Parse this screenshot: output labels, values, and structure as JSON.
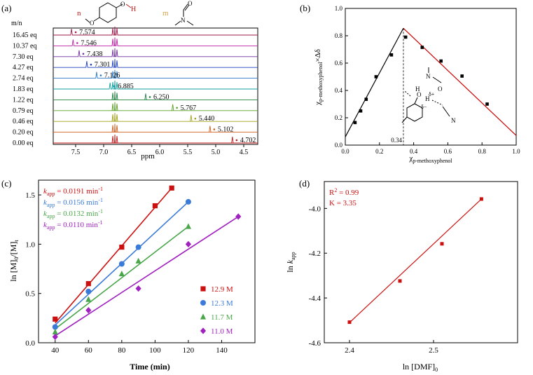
{
  "chart_data": [
    {
      "id": "a",
      "type": "line",
      "panel_label": "(a)",
      "title": "",
      "xlabel": "ppm",
      "ylabel": "",
      "series_header": "m/n",
      "molecule_labels": {
        "n": "n",
        "m": "m",
        "h": "H"
      },
      "xlim": [
        7.9,
        4.25
      ],
      "xticks": [
        "7.5",
        "7.0",
        "6.5",
        "6.0",
        "5.5",
        "5.0",
        "4.5"
      ],
      "xtick_values": [
        7.5,
        7.0,
        6.5,
        6.0,
        5.5,
        5.0,
        4.5
      ],
      "series": [
        {
          "name": "16.45 eq",
          "peak": 7.574,
          "peak_label": "7.574",
          "color": "#a01848"
        },
        {
          "name": "10.37 eq",
          "peak": 7.546,
          "peak_label": "7.546",
          "color": "#c020a8"
        },
        {
          "name": "7.30 eq",
          "peak": 7.438,
          "peak_label": "7.438",
          "color": "#7030a0"
        },
        {
          "name": "4.27 eq",
          "peak": 7.301,
          "peak_label": "7.301",
          "color": "#2040c0"
        },
        {
          "name": "2.74 eq",
          "peak": 7.126,
          "peak_label": "7.126",
          "color": "#2a78c8"
        },
        {
          "name": "1.83 eq",
          "peak": 6.885,
          "peak_label": "6.885",
          "color": "#10a0a0"
        },
        {
          "name": "1.22 eq",
          "peak": 6.25,
          "peak_label": "6.250",
          "color": "#208040"
        },
        {
          "name": "0.79 eq",
          "peak": 5.767,
          "peak_label": "5.767",
          "color": "#5aa028"
        },
        {
          "name": "0.46 eq",
          "peak": 5.44,
          "peak_label": "5.440",
          "color": "#a0a018"
        },
        {
          "name": "0.20 eq",
          "peak": 5.102,
          "peak_label": "5.102",
          "color": "#d06020"
        },
        {
          "name": "0.00 eq",
          "peak": 4.702,
          "peak_label": "4.702",
          "color": "#c01818"
        }
      ]
    },
    {
      "id": "b",
      "type": "scatter",
      "panel_label": "(b)",
      "xlabel": "χp-methoxyphenol",
      "xlabel_parts": {
        "main": "χ",
        "sub": "p-methoxyphenol"
      },
      "ylabel_parts": {
        "main": "χ",
        "sub": "p-methoxyphenol",
        "tail": "×Δδ"
      },
      "xlim": [
        0,
        1.0
      ],
      "ylim": [
        0,
        1.0
      ],
      "xticks": [
        "0.0",
        "0.2",
        "0.4",
        "0.6",
        "0.8",
        "1.0"
      ],
      "yticks": [
        "0.0",
        "0.2",
        "0.4",
        "0.6",
        "0.8",
        "1.0"
      ],
      "points": [
        {
          "x": 0.057,
          "y": 0.165
        },
        {
          "x": 0.09,
          "y": 0.25
        },
        {
          "x": 0.122,
          "y": 0.335
        },
        {
          "x": 0.18,
          "y": 0.5
        },
        {
          "x": 0.27,
          "y": 0.66
        },
        {
          "x": 0.353,
          "y": 0.79
        },
        {
          "x": 0.45,
          "y": 0.715
        },
        {
          "x": 0.56,
          "y": 0.615
        },
        {
          "x": 0.683,
          "y": 0.505
        },
        {
          "x": 0.83,
          "y": 0.3
        }
      ],
      "fit_left": {
        "x": [
          0.0,
          0.34
        ],
        "y": [
          0.06,
          0.855
        ],
        "color": "#000000"
      },
      "fit_right": {
        "x": [
          0.34,
          1.0
        ],
        "y": [
          0.855,
          0.07
        ],
        "color": "#cc0000"
      },
      "annotation": "0.34",
      "annotation_x": 0.34,
      "inset_labels": {
        "h": "H",
        "o": "O",
        "dplus": "δ+",
        "dminus": "δ−"
      }
    },
    {
      "id": "c",
      "type": "scatter",
      "panel_label": "(c)",
      "xlabel": "Time (min)",
      "ylabel_parts": {
        "a": "ln [M]",
        "b": "0",
        "c": "/[M]",
        "d": "t"
      },
      "xlim": [
        30,
        160
      ],
      "ylim": [
        0,
        1.65
      ],
      "xticks": [
        "40",
        "60",
        "80",
        "100",
        "120",
        "140"
      ],
      "xtick_values": [
        40,
        60,
        80,
        100,
        120,
        140
      ],
      "yticks": [
        "0.0",
        "0.5",
        "1.0",
        "1.5"
      ],
      "ytick_values": [
        0,
        0.5,
        1.0,
        1.5
      ],
      "rate_labels": [
        {
          "k": "k",
          "sub": "app",
          "text": " = 0.0191 min",
          "sup": "-1",
          "color": "#cc1010"
        },
        {
          "k": "k",
          "sub": "app",
          "text": " = 0.0156 min",
          "sup": "-1",
          "color": "#3a7ad8"
        },
        {
          "k": "k",
          "sub": "app",
          "text": " = 0.0132 min",
          "sup": "-1",
          "color": "#4aa64a"
        },
        {
          "k": "k",
          "sub": "app",
          "text": " = 0.0110 min",
          "sup": "-1",
          "color": "#a020c0"
        }
      ],
      "series": [
        {
          "name": "12.9 M",
          "marker": "square",
          "color": "#cc1010",
          "x": [
            40,
            60,
            80,
            100,
            110
          ],
          "y": [
            0.24,
            0.6,
            0.97,
            1.39,
            1.57
          ],
          "fit": [
            [
              40,
              0.2
            ],
            [
              110,
              1.57
            ]
          ]
        },
        {
          "name": "12.3 M",
          "marker": "circle",
          "color": "#3a7ad8",
          "x": [
            40,
            60,
            80,
            90,
            120
          ],
          "y": [
            0.16,
            0.52,
            0.8,
            0.97,
            1.43
          ],
          "fit": [
            [
              40,
              0.18
            ],
            [
              120,
              1.43
            ]
          ]
        },
        {
          "name": "11.7 M",
          "marker": "triangle",
          "color": "#4aa64a",
          "x": [
            40,
            60,
            80,
            90,
            120
          ],
          "y": [
            0.11,
            0.44,
            0.7,
            0.83,
            1.18
          ],
          "fit": [
            [
              40,
              0.14
            ],
            [
              120,
              1.18
            ]
          ]
        },
        {
          "name": "11.0 M",
          "marker": "diamond",
          "color": "#a020c0",
          "x": [
            40,
            60,
            90,
            120,
            150
          ],
          "y": [
            0.06,
            0.33,
            0.55,
            1.0,
            1.28
          ],
          "fit": [
            [
              40,
              0.07
            ],
            [
              150,
              1.28
            ]
          ]
        }
      ]
    },
    {
      "id": "d",
      "type": "scatter",
      "panel_label": "(d)",
      "xlabel_parts": {
        "a": "ln [DMF]",
        "b": "0"
      },
      "ylabel_parts": {
        "a": "ln ",
        "k": "k",
        "b": "app"
      },
      "xlim": [
        2.37,
        2.6
      ],
      "ylim": [
        -4.6,
        -3.88
      ],
      "xticks": [
        "2.4",
        "2.5"
      ],
      "xtick_values": [
        2.4,
        2.5
      ],
      "yticks": [
        "-4.0",
        "-4.2",
        "-4.4",
        "-4.6"
      ],
      "ytick_values": [
        -4.0,
        -4.2,
        -4.4,
        -4.6
      ],
      "stats": {
        "r2": "R",
        "r2_sup": "2",
        "r2_val": " = 0.99",
        "k_line": "K = 3.35"
      },
      "color": "#cc1010",
      "points": [
        {
          "x": 2.4,
          "y": -4.508
        },
        {
          "x": 2.46,
          "y": -4.324
        },
        {
          "x": 2.51,
          "y": -4.158
        },
        {
          "x": 2.557,
          "y": -3.958
        }
      ],
      "fit": [
        [
          2.4,
          -4.51
        ],
        [
          2.557,
          -3.958
        ]
      ]
    }
  ]
}
